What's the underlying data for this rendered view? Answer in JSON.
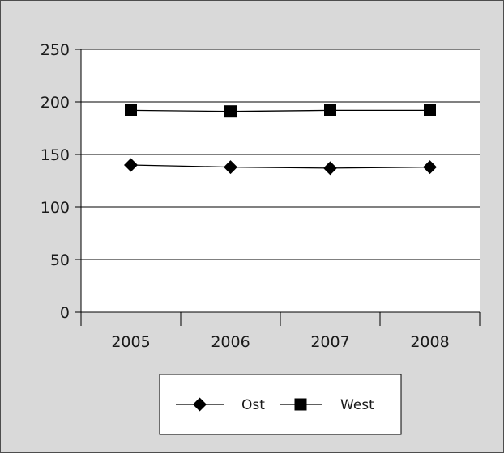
{
  "chart_data": {
    "type": "line",
    "title": "",
    "xlabel": "",
    "ylabel": "",
    "categories": [
      "2005",
      "2006",
      "2007",
      "2008"
    ],
    "ylim": [
      0,
      250
    ],
    "yticks": [
      0,
      50,
      100,
      150,
      200,
      250
    ],
    "grid": true,
    "legend_position": "bottom",
    "series": [
      {
        "name": "Ost",
        "marker": "diamond",
        "values": [
          140,
          138,
          137,
          138
        ]
      },
      {
        "name": "West",
        "marker": "square",
        "values": [
          192,
          191,
          192,
          192
        ]
      }
    ],
    "colors": {
      "background": "#d9d9d9",
      "plot_area": "#ffffff",
      "line": "#000000"
    }
  }
}
